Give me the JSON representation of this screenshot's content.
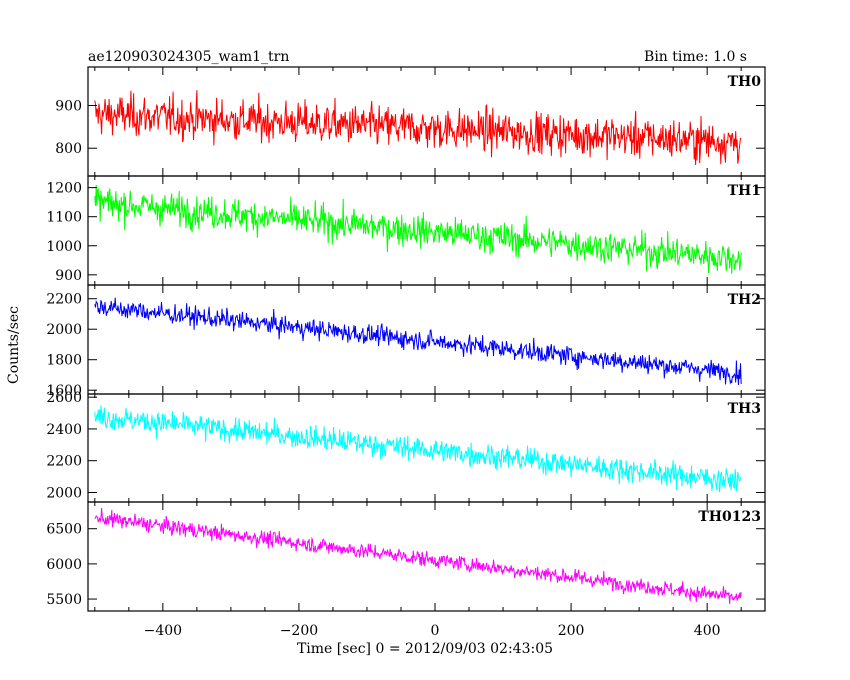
{
  "header": {
    "title": "ae120903024305_wam1_trn",
    "bin_time": "Bin time: 1.0 s"
  },
  "chart_data": {
    "type": "line",
    "title": "ae120903024305_wam1_trn",
    "xlabel": "Time [sec] 0 = 2012/09/03 02:43:05",
    "ylabel": "Counts/sec",
    "xlim": [
      -510,
      485
    ],
    "x_ticks": [
      -400,
      -200,
      0,
      200,
      400
    ],
    "x_range_data": [
      -500,
      450
    ],
    "bin_size": 1.0,
    "grid": false,
    "panels": [
      {
        "name": "TH0",
        "color": "#ff0000",
        "ylim": [
          735,
          990
        ],
        "y_ticks": [
          800,
          900
        ],
        "trend_start": 880,
        "trend_end": 815,
        "noise": 48
      },
      {
        "name": "TH1",
        "color": "#00ff00",
        "ylim": [
          865,
          1240
        ],
        "y_ticks": [
          900,
          1000,
          1100,
          1200
        ],
        "trend_start": 1150,
        "trend_end": 955,
        "noise": 55
      },
      {
        "name": "TH2",
        "color": "#0000ff",
        "ylim": [
          1575,
          2290
        ],
        "y_ticks": [
          1600,
          1800,
          2000,
          2200
        ],
        "trend_start": 2150,
        "trend_end": 1710,
        "noise": 65
      },
      {
        "name": "TH3",
        "color": "#00ffff",
        "ylim": [
          1940,
          2620
        ],
        "y_ticks": [
          2000,
          2200,
          2400,
          2600
        ],
        "trend_start": 2480,
        "trend_end": 2070,
        "noise": 75
      },
      {
        "name": "TH0123",
        "color": "#ff00ff",
        "ylim": [
          5330,
          6880
        ],
        "y_ticks": [
          5500,
          6000,
          6500
        ],
        "trend_start": 6660,
        "trend_end": 5510,
        "noise": 110
      }
    ]
  }
}
